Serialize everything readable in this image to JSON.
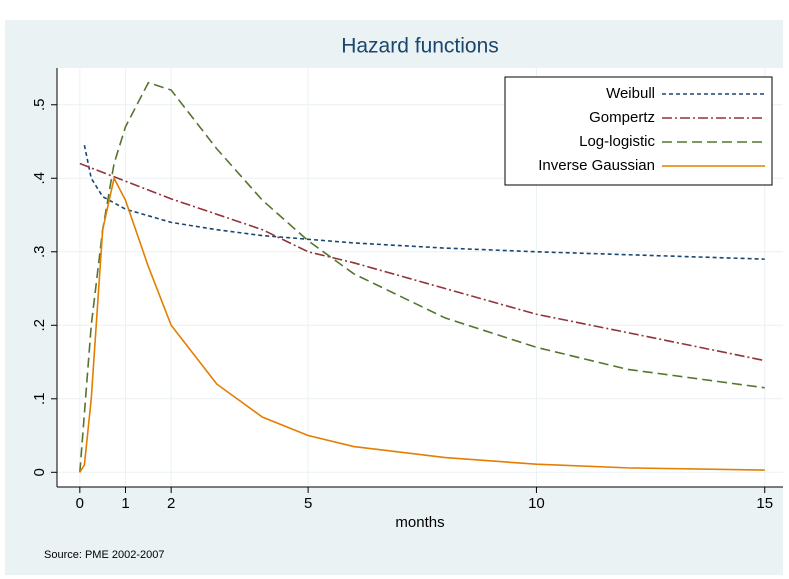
{
  "chart_data": {
    "type": "line",
    "title": "Hazard functions",
    "x_label": "months",
    "note": "Source: PME 2002-2007",
    "xlim": [
      -0.5,
      15.4
    ],
    "xticks": [
      0,
      1,
      2,
      5,
      10,
      15
    ],
    "ylim": [
      -0.02,
      0.55
    ],
    "yticks": [
      0,
      {
        "value": 0.1,
        "label": ".1"
      },
      {
        "value": 0.2,
        "label": ".2"
      },
      {
        "value": 0.3,
        "label": ".3"
      },
      {
        "value": 0.4,
        "label": ".4"
      },
      {
        "value": 0.5,
        "label": ".5"
      }
    ],
    "grid": true,
    "legend_position": "top-right",
    "series": [
      {
        "name": "Weibull",
        "color": "#1a476f",
        "dash": "4,3",
        "x": [
          0.1,
          0.25,
          0.5,
          1,
          2,
          3,
          4,
          5,
          6,
          8,
          10,
          12,
          15
        ],
        "values": [
          0.445,
          0.4,
          0.375,
          0.358,
          0.34,
          0.33,
          0.322,
          0.317,
          0.312,
          0.305,
          0.3,
          0.296,
          0.29
        ]
      },
      {
        "name": "Gompertz",
        "color": "#90353b",
        "dash": "10,3,2,3",
        "x": [
          0,
          2,
          4,
          5,
          6,
          8,
          10,
          12,
          15
        ],
        "values": [
          0.42,
          0.372,
          0.33,
          0.3,
          0.285,
          0.25,
          0.215,
          0.19,
          0.152
        ]
      },
      {
        "name": "Log-logistic",
        "color": "#55752f",
        "dash": "10,5",
        "x": [
          0,
          0.25,
          0.5,
          0.75,
          1,
          1.5,
          2,
          3,
          4,
          5,
          6,
          8,
          10,
          12,
          15
        ],
        "values": [
          0,
          0.2,
          0.33,
          0.42,
          0.47,
          0.53,
          0.52,
          0.44,
          0.37,
          0.315,
          0.27,
          0.21,
          0.17,
          0.14,
          0.115
        ]
      },
      {
        "name": "Inverse Gaussian",
        "color": "#e37e00",
        "dash": "none",
        "x": [
          0,
          0.1,
          0.25,
          0.5,
          0.75,
          1,
          1.5,
          2,
          3,
          4,
          5,
          6,
          8,
          10,
          12,
          15
        ],
        "values": [
          0,
          0.01,
          0.1,
          0.33,
          0.4,
          0.37,
          0.28,
          0.2,
          0.12,
          0.075,
          0.05,
          0.035,
          0.02,
          0.011,
          0.006,
          0.003
        ]
      }
    ]
  }
}
